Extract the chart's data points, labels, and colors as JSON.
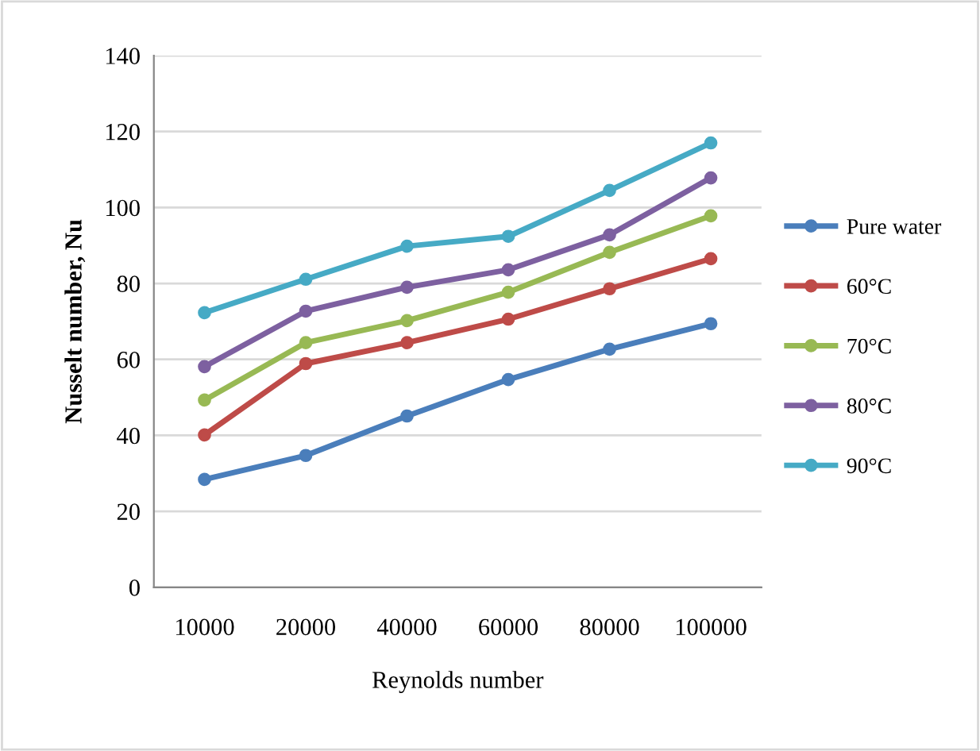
{
  "chart_data": {
    "type": "line",
    "xlabel": "Reynolds number",
    "ylabel": "Nusselt number, Nu",
    "categories": [
      "10000",
      "20000",
      "40000",
      "60000",
      "80000",
      "100000"
    ],
    "series": [
      {
        "name": "Pure water",
        "color": "#4a7ebb",
        "values": [
          28.4,
          34.7,
          45.1,
          54.7,
          62.7,
          69.4
        ]
      },
      {
        "name": "60°C",
        "color": "#be4b48",
        "values": [
          40.1,
          58.9,
          64.4,
          70.6,
          78.6,
          86.5
        ]
      },
      {
        "name": "70°C",
        "color": "#98b954",
        "values": [
          49.3,
          64.4,
          70.2,
          77.7,
          88.2,
          97.8
        ]
      },
      {
        "name": "80°C",
        "color": "#7d60a0",
        "values": [
          58.1,
          72.7,
          79,
          83.6,
          92.8,
          107.8
        ]
      },
      {
        "name": "90°C",
        "color": "#46aac5",
        "values": [
          72.3,
          81.1,
          89.8,
          92.4,
          104.5,
          117
        ]
      }
    ],
    "ylim": [
      0,
      140
    ],
    "yticks": [
      0,
      20,
      40,
      60,
      80,
      100,
      120,
      140
    ],
    "grid": "y",
    "legend": "right",
    "marker": "circle",
    "line_style": "solid"
  }
}
